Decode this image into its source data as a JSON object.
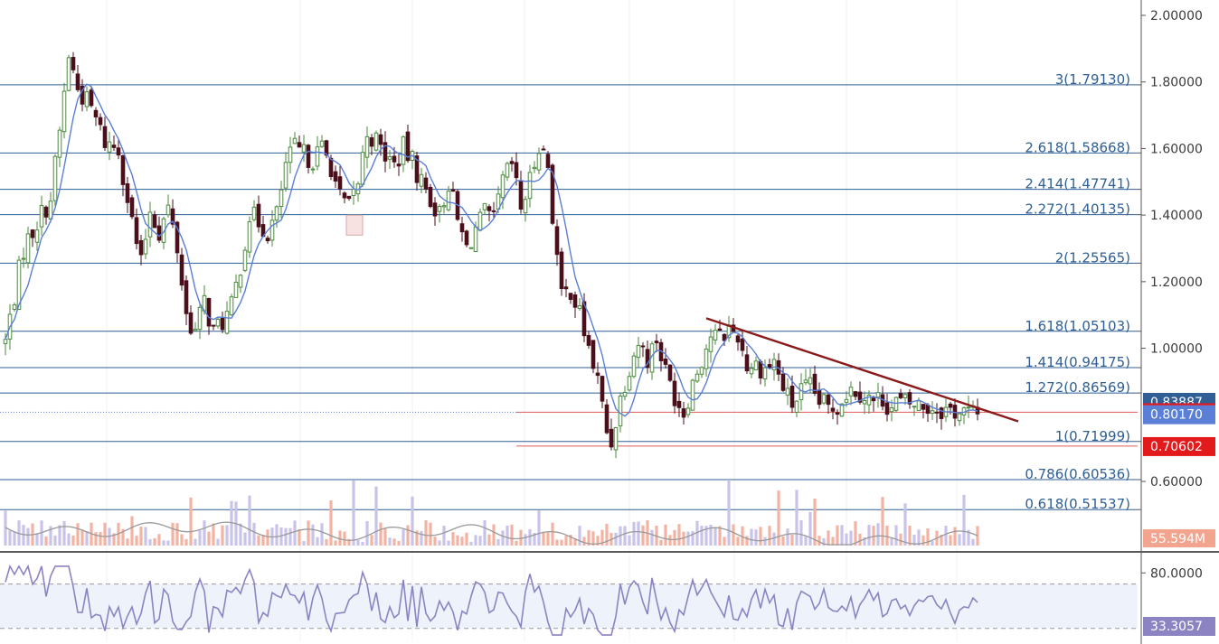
{
  "chart_data": {
    "type": "candlestick",
    "price_axis": {
      "ticks": [
        "2.00000",
        "1.80000",
        "1.60000",
        "1.40000",
        "1.20000",
        "1.00000",
        "0.60000"
      ],
      "range": [
        0.44,
        2.05
      ]
    },
    "fib_levels": [
      {
        "label": "3(1.79130)",
        "value": 1.7913
      },
      {
        "label": "2.618(1.58668)",
        "value": 1.58668
      },
      {
        "label": "2.414(1.47741)",
        "value": 1.47741
      },
      {
        "label": "2.272(1.40135)",
        "value": 1.40135
      },
      {
        "label": "2(1.25565)",
        "value": 1.25565
      },
      {
        "label": "1.618(1.05103)",
        "value": 1.05103
      },
      {
        "label": "1.414(0.94175)",
        "value": 0.94175
      },
      {
        "label": "1.272(0.86569)",
        "value": 0.86569
      },
      {
        "label": "1(0.71999)",
        "value": 0.71999
      },
      {
        "label": "0.786(0.60536)",
        "value": 0.60536
      },
      {
        "label": "0.618(0.51537)",
        "value": 0.51537
      }
    ],
    "horizontal_lines": [
      {
        "value": 0.80776,
        "color": "#e05a5a"
      },
      {
        "value": 0.70602,
        "color": "#e05a5a"
      }
    ],
    "trendline": {
      "from": {
        "bar": 155,
        "value": 1.09
      },
      "to": {
        "bar": 220,
        "value": 0.775
      },
      "color": "#8b1a1a"
    },
    "price_badges": [
      {
        "text": "0.83887",
        "value": 0.83887,
        "color": "#2f5f94"
      },
      {
        "text": "0.80776",
        "value": 0.80776,
        "color": "#e31a1c"
      },
      {
        "text": "0.80170",
        "value": 0.8017,
        "color": "#5b7fd6"
      },
      {
        "text": "0.70602",
        "value": 0.70602,
        "color": "#e31a1c"
      }
    ],
    "closes_anchor": [
      [
        0,
        1.02
      ],
      [
        4,
        1.3
      ],
      [
        7,
        1.38
      ],
      [
        10,
        1.45
      ],
      [
        12,
        1.65
      ],
      [
        14,
        1.88
      ],
      [
        16,
        1.78
      ],
      [
        19,
        1.72
      ],
      [
        22,
        1.62
      ],
      [
        25,
        1.6
      ],
      [
        28,
        1.38
      ],
      [
        30,
        1.25
      ],
      [
        32,
        1.42
      ],
      [
        34,
        1.35
      ],
      [
        36,
        1.42
      ],
      [
        38,
        1.3
      ],
      [
        40,
        1.1
      ],
      [
        42,
        1.05
      ],
      [
        44,
        1.14
      ],
      [
        46,
        1.05
      ],
      [
        48,
        1.08
      ],
      [
        50,
        1.12
      ],
      [
        52,
        1.25
      ],
      [
        54,
        1.4
      ],
      [
        56,
        1.38
      ],
      [
        58,
        1.35
      ],
      [
        60,
        1.4
      ],
      [
        62,
        1.55
      ],
      [
        64,
        1.6
      ],
      [
        66,
        1.58
      ],
      [
        68,
        1.57
      ],
      [
        70,
        1.6
      ],
      [
        72,
        1.55
      ],
      [
        74,
        1.45
      ],
      [
        76,
        1.42
      ],
      [
        78,
        1.5
      ],
      [
        80,
        1.65
      ],
      [
        82,
        1.62
      ],
      [
        84,
        1.58
      ],
      [
        86,
        1.55
      ],
      [
        88,
        1.6
      ],
      [
        90,
        1.56
      ],
      [
        92,
        1.5
      ],
      [
        94,
        1.45
      ],
      [
        96,
        1.4
      ],
      [
        98,
        1.5
      ],
      [
        100,
        1.38
      ],
      [
        102,
        1.3
      ],
      [
        104,
        1.36
      ],
      [
        106,
        1.4
      ],
      [
        108,
        1.38
      ],
      [
        110,
        1.5
      ],
      [
        112,
        1.55
      ],
      [
        114,
        1.42
      ],
      [
        116,
        1.5
      ],
      [
        118,
        1.62
      ],
      [
        120,
        1.55
      ],
      [
        121,
        1.4
      ],
      [
        123,
        1.15
      ],
      [
        125,
        1.18
      ],
      [
        127,
        1.1
      ],
      [
        129,
        1.0
      ],
      [
        131,
        0.9
      ],
      [
        133,
        0.75
      ],
      [
        134,
        0.72
      ],
      [
        136,
        0.85
      ],
      [
        138,
        0.95
      ],
      [
        140,
        1.02
      ],
      [
        142,
        0.97
      ],
      [
        144,
        1.03
      ],
      [
        146,
        0.93
      ],
      [
        148,
        0.86
      ],
      [
        150,
        0.81
      ],
      [
        152,
        0.9
      ],
      [
        154,
        0.97
      ],
      [
        156,
        1.04
      ],
      [
        158,
        1.03
      ],
      [
        160,
        1.06
      ],
      [
        162,
        1.04
      ],
      [
        164,
        0.95
      ],
      [
        166,
        0.95
      ],
      [
        168,
        0.94
      ],
      [
        170,
        0.96
      ],
      [
        172,
        0.88
      ],
      [
        174,
        0.83
      ],
      [
        176,
        0.87
      ],
      [
        178,
        0.88
      ],
      [
        180,
        0.84
      ],
      [
        182,
        0.82
      ],
      [
        184,
        0.83
      ],
      [
        186,
        0.87
      ],
      [
        188,
        0.88
      ],
      [
        190,
        0.86
      ],
      [
        192,
        0.84
      ],
      [
        194,
        0.85
      ],
      [
        196,
        0.82
      ]
    ],
    "volume_badge": "55.594M",
    "rsi": {
      "ticks": [
        "80.0000"
      ],
      "current": "33.3057",
      "band_top": 70,
      "band_bottom": 30,
      "range": [
        20,
        90
      ]
    }
  }
}
